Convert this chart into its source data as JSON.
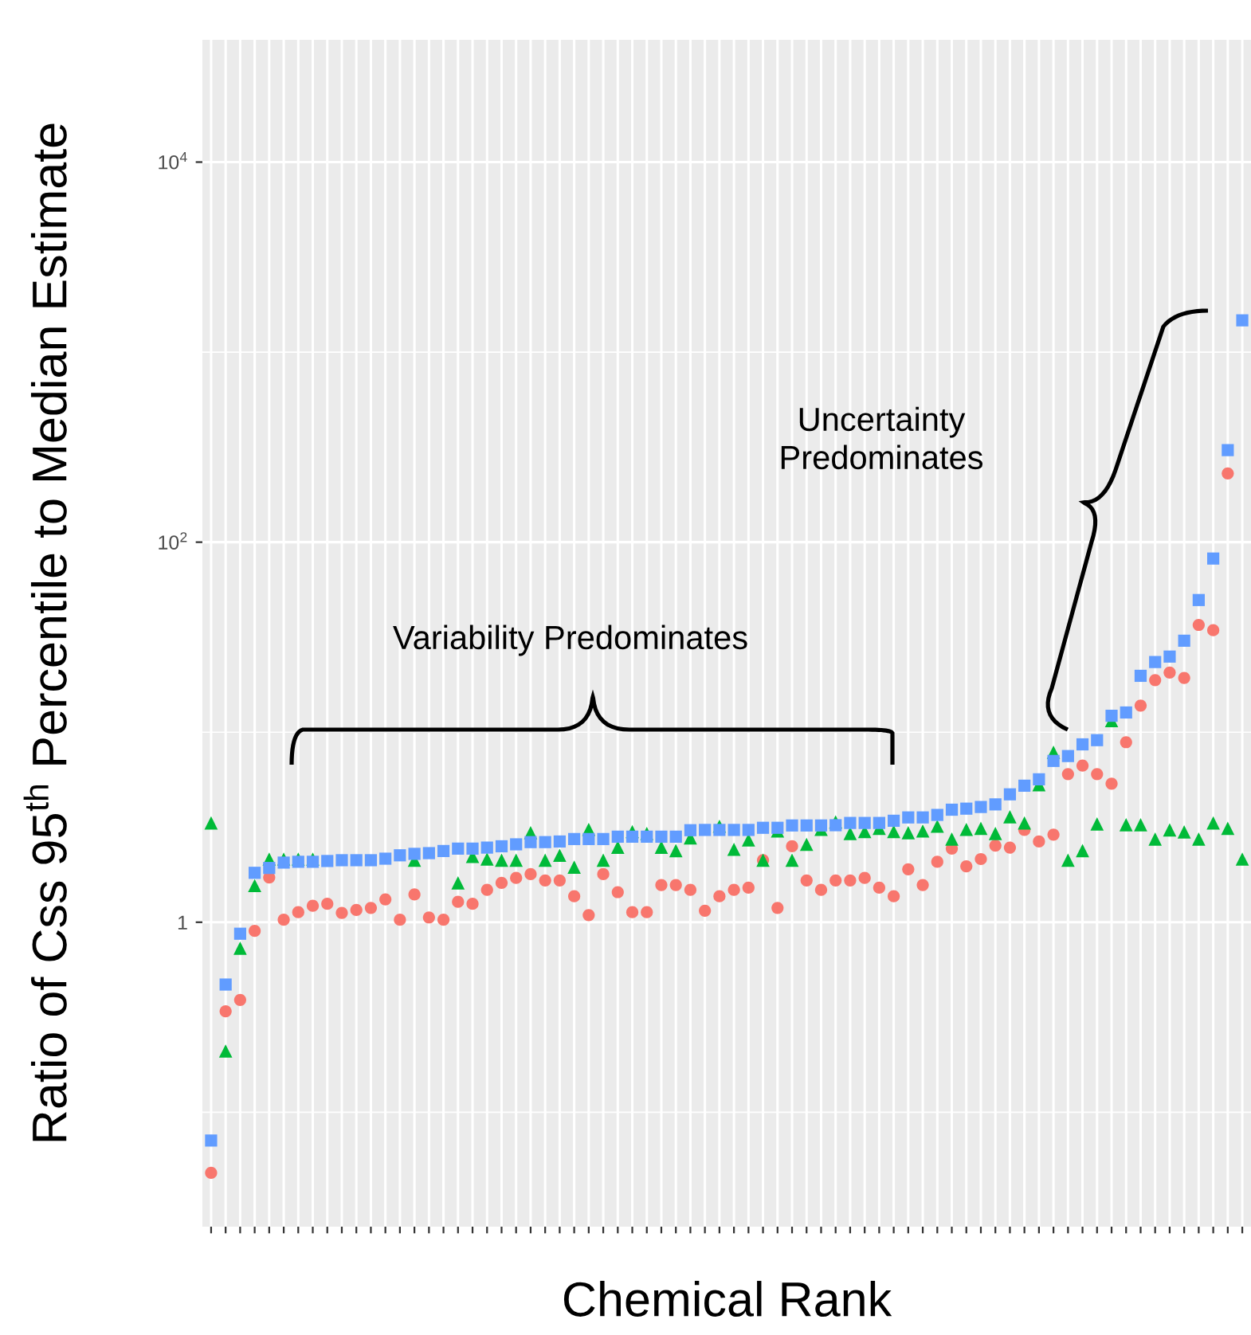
{
  "chart_data": {
    "type": "scatter",
    "xlabel": "Chemical Rank",
    "ylabel": "Ratio of Css 95$^{th}$ Percentile to Median Estimate",
    "categories": [
      null,
      null,
      null,
      null,
      null,
      null,
      null,
      null,
      null,
      null,
      null,
      null,
      null,
      null,
      null,
      null,
      null,
      null,
      null,
      null,
      null,
      null,
      null,
      null,
      null,
      null,
      null,
      null,
      null,
      null,
      null,
      null,
      null,
      null,
      null,
      null,
      null,
      null,
      null,
      null,
      null,
      null,
      null,
      null,
      null,
      null,
      null,
      null,
      null,
      null,
      null,
      null,
      null,
      null,
      null,
      null,
      null,
      null,
      null,
      null,
      null,
      null,
      null,
      null,
      null,
      null,
      null,
      null,
      null,
      null,
      null,
      null
    ],
    "log": "y",
    "ylim": [
      0.025,
      44000
    ],
    "yticks": [
      1,
      {
        "value": 100,
        "label": "10$^{2}$"
      },
      {
        "value": 10000,
        "label": "10$^{4}$"
      }
    ],
    "grid": true,
    "legend": false,
    "series": [
      {
        "color": "#f8766d",
        "marker": "circle",
        "values": [
          0.048,
          0.34,
          0.39,
          0.9,
          1.72,
          1.03,
          1.13,
          1.22,
          1.25,
          1.12,
          1.16,
          1.19,
          1.32,
          1.03,
          1.4,
          1.06,
          1.03,
          1.28,
          1.25,
          1.48,
          1.61,
          1.71,
          1.79,
          1.66,
          1.66,
          1.37,
          1.09,
          1.79,
          1.44,
          1.13,
          1.13,
          1.57,
          1.57,
          1.48,
          1.15,
          1.37,
          1.48,
          1.52,
          2.12,
          1.19,
          2.51,
          1.66,
          1.48,
          1.66,
          1.66,
          1.71,
          1.52,
          1.37,
          1.9,
          1.57,
          2.08,
          2.44,
          1.97,
          2.15,
          2.53,
          2.47,
          3.06,
          2.66,
          2.89,
          6.02,
          6.67,
          6.02,
          5.36,
          8.86,
          13.8,
          18.8,
          20.6,
          19.3,
          36.7,
          34.4,
          230,
          null
        ]
      },
      {
        "color": "#00ba38",
        "marker": "triangle",
        "values": [
          3.33,
          0.21,
          0.73,
          1.56,
          2.15,
          2.15,
          2.15,
          2.15,
          null,
          null,
          null,
          null,
          null,
          null,
          2.12,
          null,
          null,
          1.61,
          2.22,
          2.15,
          2.12,
          2.12,
          2.96,
          2.12,
          2.25,
          1.95,
          3.08,
          2.12,
          2.48,
          3.0,
          2.93,
          2.48,
          2.38,
          2.78,
          null,
          3.2,
          2.42,
          2.71,
          2.12,
          3.02,
          2.12,
          2.57,
          3.08,
          3.37,
          2.93,
          3.0,
          3.12,
          3.0,
          2.96,
          3.02,
          3.2,
          2.74,
          3.08,
          3.12,
          2.93,
          3.59,
          3.33,
          5.29,
          7.84,
          2.12,
          2.38,
          3.29,
          11.5,
          3.26,
          3.26,
          2.74,
          3.06,
          2.99,
          2.74,
          3.33,
          3.12,
          2.15
        ]
      },
      {
        "color": "#619cff",
        "marker": "square",
        "values": [
          0.071,
          0.47,
          0.87,
          1.82,
          1.93,
          2.06,
          2.08,
          2.08,
          2.1,
          2.12,
          2.12,
          2.12,
          2.16,
          2.25,
          2.29,
          2.31,
          2.37,
          2.44,
          2.44,
          2.47,
          2.51,
          2.57,
          2.64,
          2.64,
          2.66,
          2.74,
          2.74,
          2.74,
          2.82,
          2.82,
          2.82,
          2.82,
          2.82,
          3.05,
          3.06,
          3.06,
          3.06,
          3.06,
          3.14,
          3.14,
          3.23,
          3.23,
          3.23,
          3.24,
          3.33,
          3.33,
          3.33,
          3.42,
          3.56,
          3.56,
          3.67,
          3.91,
          3.96,
          4.04,
          4.17,
          4.71,
          5.23,
          5.65,
          7.06,
          7.49,
          8.63,
          9.08,
          12.2,
          12.7,
          19.8,
          23.4,
          25,
          30.3,
          49.6,
          82,
          305,
          1470
        ]
      }
    ],
    "annotations": [
      "Variability Predominates",
      "Uncertainty\nPredominates"
    ]
  }
}
